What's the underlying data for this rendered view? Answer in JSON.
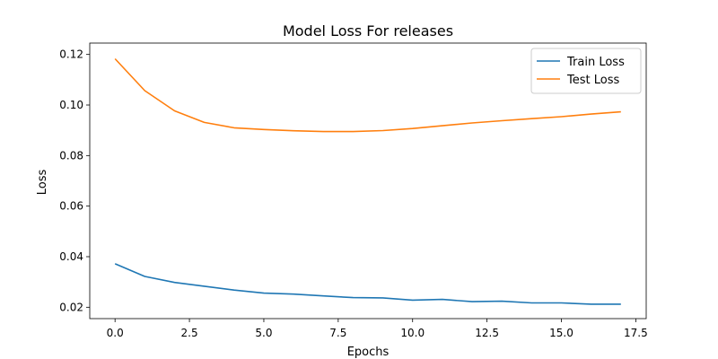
{
  "chart_data": {
    "type": "line",
    "title": "Model Loss For releases",
    "xlabel": "Epochs",
    "ylabel": "Loss",
    "x": [
      0,
      1,
      2,
      3,
      4,
      5,
      6,
      7,
      8,
      9,
      10,
      11,
      12,
      13,
      14,
      15,
      16,
      17
    ],
    "xlim": [
      -0.85,
      17.85
    ],
    "ylim": [
      0.0155,
      0.1245
    ],
    "xticks": [
      0.0,
      2.5,
      5.0,
      7.5,
      10.0,
      12.5,
      15.0,
      17.5
    ],
    "xtick_labels": [
      "0.0",
      "2.5",
      "5.0",
      "7.5",
      "10.0",
      "12.5",
      "15.0",
      "17.5"
    ],
    "yticks": [
      0.02,
      0.04,
      0.06,
      0.08,
      0.1,
      0.12
    ],
    "ytick_labels": [
      "0.02",
      "0.04",
      "0.06",
      "0.08",
      "0.10",
      "0.12"
    ],
    "grid": false,
    "legend_position": "top-right",
    "series": [
      {
        "name": "Train Loss",
        "color": "#1f77b4",
        "values": [
          0.0372,
          0.0322,
          0.0298,
          0.0283,
          0.0268,
          0.0256,
          0.0252,
          0.0245,
          0.0238,
          0.0237,
          0.0228,
          0.0231,
          0.0222,
          0.0224,
          0.0217,
          0.0217,
          0.0212,
          0.0212
        ]
      },
      {
        "name": "Test Loss",
        "color": "#ff7f0e",
        "values": [
          0.1183,
          0.1057,
          0.0977,
          0.0931,
          0.091,
          0.0903,
          0.0898,
          0.0895,
          0.0895,
          0.0899,
          0.0907,
          0.0918,
          0.0929,
          0.0938,
          0.0946,
          0.0954,
          0.0964,
          0.0973
        ]
      }
    ]
  }
}
